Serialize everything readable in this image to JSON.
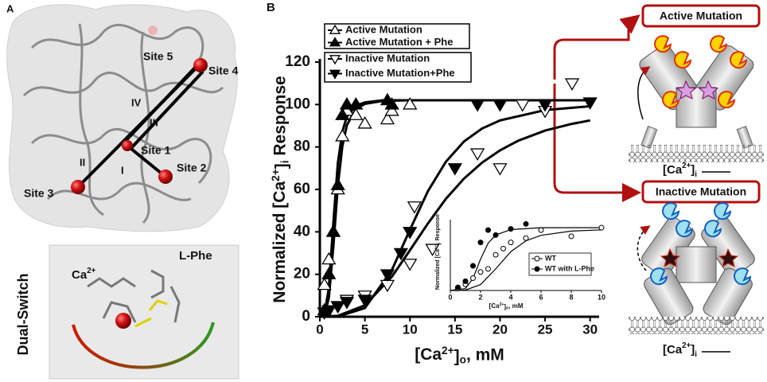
{
  "panel_a": {
    "label": "A",
    "sites": [
      "Site 5",
      "Site 4",
      "Site 1",
      "Site 2",
      "Site 3"
    ],
    "segments": [
      "IV",
      "III",
      "II",
      "I"
    ],
    "inset_ca": [
      "Ca",
      "2+"
    ],
    "inset_phe": "L-Phe",
    "side_title": "Dual-Switch"
  },
  "panel_c": {
    "active_title": "Active Mutation",
    "inactive_title": "Inactive Mutation",
    "ca_label": [
      "[Ca",
      "2+",
      "]",
      "i"
    ]
  },
  "chart_data": [
    {
      "type": "scatter",
      "panel_label": "B",
      "x_label": [
        "[Ca",
        "2+",
        "]",
        "o",
        ", mM"
      ],
      "y_label": [
        "Normalized [Ca",
        "2+",
        "]",
        "i",
        " Response"
      ],
      "xlim": [
        0,
        31
      ],
      "ylim": [
        0,
        120
      ],
      "xticks": [
        0,
        5,
        10,
        15,
        20,
        25,
        30
      ],
      "yticks": [
        0,
        20,
        40,
        60,
        80,
        100,
        120
      ],
      "series": [
        {
          "name": "Active Mutation",
          "color": "#000000",
          "marker": "triangle-up",
          "filled": false,
          "x": [
            0.5,
            1,
            1.5,
            2,
            2.5,
            3,
            4,
            5,
            7.5,
            8,
            10
          ],
          "values": [
            15,
            27,
            40,
            60,
            85,
            97,
            95,
            91,
            93,
            97,
            100
          ]
        },
        {
          "name": "Active Mutation + Phe",
          "color": "#000000",
          "marker": "triangle-up",
          "filled": true,
          "x": [
            0.5,
            1,
            1.5,
            2,
            2.5,
            3,
            4,
            7.5,
            8
          ],
          "values": [
            3,
            20,
            40,
            62,
            95,
            100,
            100,
            102,
            100
          ]
        },
        {
          "name": "Inactive Mutation",
          "color": "#000000",
          "marker": "triangle-down",
          "filled": false,
          "x": [
            1,
            2,
            3,
            5,
            7.5,
            10,
            10.5,
            12.5,
            17.5,
            20,
            22.5,
            25,
            28
          ],
          "values": [
            3,
            5,
            8,
            10,
            15,
            25,
            52,
            32,
            77,
            70,
            100,
            97,
            110
          ]
        },
        {
          "name": "Inactive Mutation+Phe",
          "color": "#000000",
          "marker": "triangle-down",
          "filled": true,
          "x": [
            0.5,
            1,
            2,
            3,
            5,
            7.5,
            9,
            10,
            15,
            17.5,
            20,
            25,
            30
          ],
          "values": [
            2,
            3,
            5,
            7,
            8,
            20,
            30,
            40,
            70,
            100,
            100,
            100,
            101
          ]
        }
      ],
      "fits": [
        {
          "x": [
            0,
            0.5,
            1,
            1.5,
            2,
            2.5,
            3,
            4,
            5,
            7,
            10,
            20,
            30
          ],
          "values": [
            0,
            0.6,
            8.9,
            33.2,
            61.6,
            80.4,
            90.3,
            98,
            100.3,
            101.7,
            102,
            102,
            102
          ]
        },
        {
          "x": [
            0,
            0.5,
            1,
            1.5,
            2,
            2.5,
            3,
            4,
            5,
            7,
            10,
            20,
            30
          ],
          "values": [
            0,
            1,
            13.5,
            44.4,
            72.3,
            87.3,
            94.4,
            99.5,
            101,
            102,
            102,
            102,
            102
          ]
        },
        {
          "x": [
            0,
            2,
            5,
            8,
            10,
            12,
            14,
            16,
            18,
            20,
            22,
            25,
            28,
            30
          ],
          "values": [
            0,
            0.4,
            5.4,
            18.9,
            31.3,
            44,
            55.6,
            65.1,
            72.6,
            78.4,
            82.9,
            87.7,
            90.9,
            92.5
          ]
        },
        {
          "x": [
            0,
            2,
            5,
            8,
            10,
            12,
            14,
            16,
            18,
            20,
            25,
            30
          ],
          "values": [
            0,
            0.1,
            4.1,
            22.1,
            41,
            59.2,
            73.1,
            82.6,
            88.7,
            92.5,
            97.4,
            99.2
          ]
        }
      ]
    },
    {
      "type": "scatter",
      "x_label": [
        "[Ca",
        "2+",
        "]",
        "o",
        ", mM"
      ],
      "y_label": [
        "Normalized [Ca",
        "2+",
        "]",
        "i",
        " Response"
      ],
      "xlim": [
        0,
        10
      ],
      "ylim": [
        0,
        115
      ],
      "xticks": [
        0,
        2,
        4,
        6,
        8,
        10
      ],
      "series": [
        {
          "name": "WT",
          "color": "#000000",
          "marker": "circle",
          "filled": false,
          "x": [
            0.5,
            1,
            1.5,
            2,
            2.5,
            3,
            3.5,
            4,
            5,
            6,
            8,
            10
          ],
          "values": [
            3,
            10,
            20,
            30,
            35,
            58,
            68,
            78,
            85,
            98,
            88,
            102
          ]
        },
        {
          "name": "WT with L-Phe",
          "color": "#000000",
          "marker": "circle",
          "filled": true,
          "x": [
            0.5,
            1,
            1.5,
            2,
            2.5,
            3,
            4,
            5
          ],
          "values": [
            5,
            15,
            40,
            78,
            98,
            90,
            100,
            108
          ]
        }
      ],
      "fits": [
        {
          "x": [
            0,
            0.5,
            1,
            2,
            3,
            4,
            5,
            6,
            8,
            10
          ],
          "values": [
            0,
            0.04,
            0.7,
            9.6,
            35,
            63,
            80.6,
            89.6,
            96.4,
            98.5
          ]
        },
        {
          "x": [
            0,
            1,
            1.5,
            2,
            2.5,
            3,
            4,
            6,
            10
          ],
          "values": [
            0,
            3.1,
            19.6,
            51,
            76.8,
            90.1,
            98.9,
            102,
            102
          ]
        }
      ]
    }
  ]
}
